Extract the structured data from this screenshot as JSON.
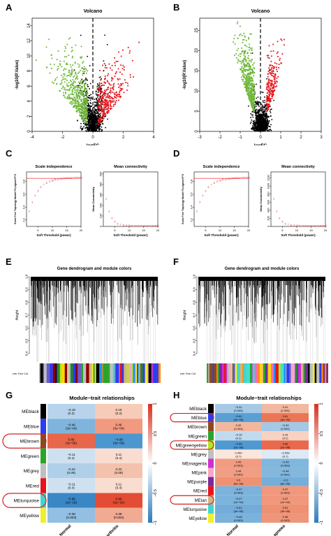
{
  "panels": {
    "A": "A",
    "B": "B",
    "C": "C",
    "D": "D",
    "E": "E",
    "F": "F",
    "G": "G",
    "H": "H"
  },
  "volcano": {
    "A": {
      "title": "Volcano",
      "xlabel": "logFC",
      "ylabel": "-log10(P.Value)",
      "xticks": [
        "-4",
        "-2",
        "0",
        "2",
        "4"
      ],
      "yticks": [
        "0",
        "2",
        "4",
        "6",
        "8",
        "10",
        "12",
        "14"
      ],
      "xrange": [
        -4,
        4
      ],
      "yrange": [
        0,
        15
      ],
      "cut": 0
    },
    "B": {
      "title": "Volcano",
      "xlabel": "logFC",
      "ylabel": "-log10(P.Value)",
      "xticks": [
        "-3",
        "-2",
        "-1",
        "0",
        "1",
        "2",
        "3"
      ],
      "yticks": [
        "0",
        "5",
        "10",
        "15",
        "20",
        "25"
      ],
      "xrange": [
        -3,
        3
      ],
      "yrange": [
        0,
        28
      ],
      "cut": 0
    },
    "colors": {
      "up": "#e8141b",
      "down": "#6fb83a",
      "ns": "#000000",
      "cutline": "#000000"
    }
  },
  "scale": {
    "C": {
      "title1": "Scale independence",
      "ylabel1": "Scale Free Topology Model Fit,signed R^2",
      "xlabel": "Soft Threshold (power)",
      "yticks1": [
        "0.2",
        "0.4",
        "0.6",
        "0.8"
      ],
      "xticks": [
        "5",
        "10",
        "15",
        "20"
      ],
      "title2": "Mean connectivity",
      "ylabel2": "Mean Connectivity",
      "yticks2": [
        "0",
        "100",
        "200",
        "300",
        "400",
        "500"
      ],
      "threshold": 0.85
    },
    "D": {
      "title1": "Scale independence",
      "ylabel1": "Scale Free Topology Model Fit,signed R^2",
      "xlabel": "Soft Threshold (power)",
      "yticks1": [
        "0.2",
        "0.4",
        "0.6",
        "0.8"
      ],
      "xticks": [
        "5",
        "10",
        "15",
        "20"
      ],
      "title2": "Mean connectivity",
      "ylabel2": "Mean Connectivity",
      "yticks2": [
        "0",
        "200",
        "400",
        "600",
        "800",
        "1000",
        "1200"
      ],
      "threshold": 0.85
    }
  },
  "dendro": {
    "E": {
      "title": "Gene dendrogram and module colors",
      "ylabel": "Height",
      "yticks": [
        "0.4",
        "0.5",
        "0.6",
        "0.7",
        "0.8",
        "0.9",
        "1.0"
      ],
      "strip": "Dynamic Tree Cut"
    },
    "F": {
      "title": "Gene dendrogram and module colors",
      "ylabel": "Height",
      "yticks": [
        "0.4",
        "0.5",
        "0.6",
        "0.7",
        "0.8",
        "0.9",
        "1.0"
      ],
      "strip": "Dynamic Tree Cut"
    }
  },
  "heat": {
    "G": {
      "title": "Module−trait relationships",
      "cols": [
        "Normal",
        "Osteoarthritis"
      ],
      "legend": [
        "1",
        "0.5",
        "0",
        "−0.5",
        "−1"
      ],
      "rows": [
        {
          "name": "MEblack",
          "color": "#000000",
          "v": [
            "−0.19\n(0.2)",
            "0.19\n(0.2)"
          ],
          "c": [
            "#b8d4ec",
            "#f6cbb8"
          ]
        },
        {
          "name": "MEblue",
          "color": "#2d3cf0",
          "v": [
            "−0.46\n(3e−04)",
            "0.46\n(3e−04)"
          ],
          "c": [
            "#7fb5dc",
            "#f19a80"
          ]
        },
        {
          "name": "MEbrown",
          "color": "#8b4a1e",
          "v": [
            "0.68\n(3e−09)",
            "−0.68\n(3e−09)"
          ],
          "c": [
            "#e8664a",
            "#4c97cf"
          ]
        },
        {
          "name": "MEgreen",
          "color": "#2aa52a",
          "v": [
            "−0.11\n(0.4)",
            "0.11\n(0.4)"
          ],
          "c": [
            "#cfe1f1",
            "#f9ddd0"
          ]
        },
        {
          "name": "MEgrey",
          "color": "#bfbfbf",
          "v": [
            "−0.22\n(0.09)",
            "0.22\n(0.09)"
          ],
          "c": [
            "#b0d0ea",
            "#f4c2ac"
          ]
        },
        {
          "name": "MEred",
          "color": "#e8141b",
          "v": [
            "−0.11\n(0.4)",
            "0.11\n(0.4)"
          ],
          "c": [
            "#cfe1f1",
            "#f9ddd0"
          ]
        },
        {
          "name": "MEturquoise",
          "color": "#3fd6d0",
          "v": [
            "−0.89\n(2e−19)",
            "0.89\n(2e−19)"
          ],
          "c": [
            "#3a87c6",
            "#e24d34"
          ]
        },
        {
          "name": "MEyellow",
          "color": "#f0f02a",
          "v": [
            "−0.38\n(0.003)",
            "0.38\n(0.003)"
          ],
          "c": [
            "#93c0e2",
            "#f2ab93"
          ]
        }
      ],
      "highlight": [
        "MEbrown",
        "MEturquoise"
      ]
    },
    "H": {
      "title": "Module−trait relationships",
      "cols": [
        "Normal",
        "Sleep_apnoea"
      ],
      "legend": [
        "1",
        "0.5",
        "0",
        "−0.5",
        "−1"
      ],
      "rows": [
        {
          "name": "MEblack",
          "color": "#000000",
          "v": [
            "−0.31\n(0.005)",
            "0.31\n(0.005)"
          ],
          "c": [
            "#a5c9e7",
            "#f3b8a0"
          ]
        },
        {
          "name": "MEblue",
          "color": "#2d3cf0",
          "v": [
            "−0.61\n(3e−09)",
            "0.61\n(3e−09)"
          ],
          "c": [
            "#5aa0d3",
            "#eb7656"
          ]
        },
        {
          "name": "MEbrown",
          "color": "#8b4a1e",
          "v": [
            "0.32\n(0.004)",
            "−0.32\n(0.004)"
          ],
          "c": [
            "#f3b79e",
            "#a4c8e6"
          ]
        },
        {
          "name": "MEgreen",
          "color": "#2aa52a",
          "v": [
            "−0.16\n(0.2)",
            "0.16\n(0.2)"
          ],
          "c": [
            "#c2daee",
            "#f8d2c2"
          ]
        },
        {
          "name": "MEgreenyellow",
          "color": "#b5e61d",
          "v": [
            "−0.66\n(2e−08)",
            "0.66\n(2e−08)"
          ],
          "c": [
            "#4f99d0",
            "#e8694d"
          ]
        },
        {
          "name": "MEgrey",
          "color": "#bfbfbf",
          "v": [
            "0.059\n(0.7)",
            "−0.059\n(0.7)"
          ],
          "c": [
            "#fbe6dd",
            "#dde9f4"
          ]
        },
        {
          "name": "MEmagenta",
          "color": "#d12dd1",
          "v": [
            "0.45\n(0.003)",
            "−0.45\n(0.003)"
          ],
          "c": [
            "#f19c82",
            "#81b6dd"
          ]
        },
        {
          "name": "MEpink",
          "color": "#f7a6c4",
          "v": [
            "0.44\n(0.002)",
            "−0.44\n(0.002)"
          ],
          "c": [
            "#f19e84",
            "#83b7dd"
          ]
        },
        {
          "name": "MEpurple",
          "color": "#7a2a9a",
          "v": [
            "0.5\n(6e−06)",
            "−0.5\n(6e−06)"
          ],
          "c": [
            "#ef9274",
            "#75aeda"
          ]
        },
        {
          "name": "MEred",
          "color": "#e8141b",
          "v": [
            "−0.47\n(0.003)",
            "0.47\n(0.003)"
          ],
          "c": [
            "#7cb3dc",
            "#f0977c"
          ]
        },
        {
          "name": "MEtan",
          "color": "#d2b48c",
          "v": [
            "−0.47\n(1e−04)",
            "0.47\n(1e−04)"
          ],
          "c": [
            "#7cb3dc",
            "#f0977c"
          ]
        },
        {
          "name": "MEturquoise",
          "color": "#3fd6d0",
          "v": [
            "−0.51\n(3e−06)",
            "0.51\n(3e−06)"
          ],
          "c": [
            "#73acd9",
            "#ee9072"
          ]
        },
        {
          "name": "MEyellow",
          "color": "#f0f02a",
          "v": [
            "−0.48\n(0.003)",
            "0.48\n(0.003)"
          ],
          "c": [
            "#7ab2db",
            "#ef957a"
          ]
        }
      ],
      "highlight": [
        "MEblue",
        "MEgreenyellow",
        "MEtan"
      ]
    }
  }
}
